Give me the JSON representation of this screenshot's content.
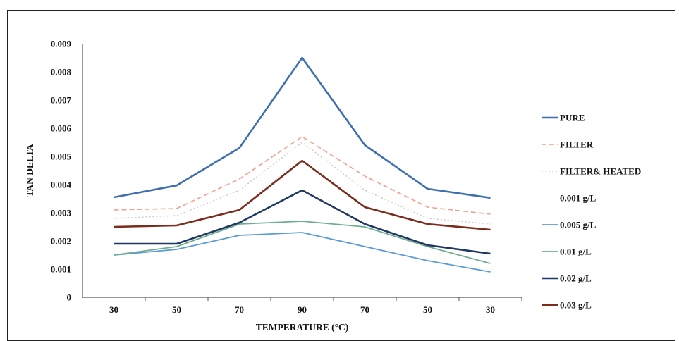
{
  "chart_data": {
    "type": "line",
    "title": "",
    "xlabel": "TEMPERATURE (°C)",
    "ylabel": "TAN DELTA",
    "categories": [
      "30",
      "50",
      "70",
      "90",
      "70",
      "50",
      "30"
    ],
    "ylim": [
      0,
      0.009
    ],
    "y_ticks": [
      "0",
      "0.001",
      "0.002",
      "0.003",
      "0.004",
      "0.005",
      "0.006",
      "0.007",
      "0.008",
      "0.009"
    ],
    "grid": false,
    "legend_position": "right",
    "series": [
      {
        "name": "PURE",
        "color": "#3f6fae",
        "dash": "solid",
        "width": 2.6,
        "values": [
          0.00355,
          0.00397,
          0.0053,
          0.0085,
          0.0054,
          0.00385,
          0.00353
        ]
      },
      {
        "name": "FILTER",
        "color": "#f0a08c",
        "dash": "dashed",
        "width": 1.6,
        "values": [
          0.0031,
          0.00315,
          0.0042,
          0.0057,
          0.0043,
          0.0032,
          0.00295
        ]
      },
      {
        "name": "FILTER& HEATED",
        "color": "#c8c8c8",
        "dash": "dotted",
        "width": 1.4,
        "values": [
          0.0028,
          0.0029,
          0.0038,
          0.0055,
          0.0038,
          0.0028,
          0.0026
        ]
      },
      {
        "name": "0.001 g/L",
        "color": "#ffffff",
        "dash": "none",
        "width": 0,
        "values": [
          0.0025,
          0.0025,
          0.003,
          0.0047,
          0.0031,
          0.0025,
          0.0024
        ]
      },
      {
        "name": "0.005 g/L",
        "color": "#5b9bd5",
        "dash": "solid",
        "width": 1.8,
        "values": [
          0.0015,
          0.0017,
          0.0022,
          0.0023,
          0.0018,
          0.0013,
          0.0009
        ]
      },
      {
        "name": "0.01 g/L",
        "color": "#70ad8f",
        "dash": "solid",
        "width": 1.8,
        "values": [
          0.0015,
          0.0018,
          0.0026,
          0.0027,
          0.0025,
          0.0018,
          0.0012
        ]
      },
      {
        "name": "0.02 g/L",
        "color": "#1f3864",
        "dash": "solid",
        "width": 2.6,
        "values": [
          0.0019,
          0.0019,
          0.00265,
          0.0038,
          0.0026,
          0.00185,
          0.00155
        ]
      },
      {
        "name": "0.03 g/L",
        "color": "#7b2c1c",
        "dash": "solid",
        "width": 2.6,
        "values": [
          0.0025,
          0.00255,
          0.0031,
          0.00485,
          0.0032,
          0.0026,
          0.0024
        ]
      }
    ]
  }
}
